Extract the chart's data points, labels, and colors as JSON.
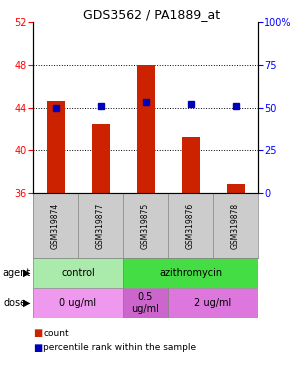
{
  "title": "GDS3562 / PA1889_at",
  "samples": [
    "GSM319874",
    "GSM319877",
    "GSM319875",
    "GSM319876",
    "GSM319878"
  ],
  "count_values": [
    44.6,
    42.5,
    48.0,
    41.2,
    36.8
  ],
  "percentile_values": [
    50,
    51,
    53,
    52,
    51
  ],
  "ylim_left": [
    36,
    52
  ],
  "ylim_right": [
    0,
    100
  ],
  "yticks_left": [
    36,
    40,
    44,
    48,
    52
  ],
  "yticks_right": [
    0,
    25,
    50,
    75,
    100
  ],
  "ytick_right_labels": [
    "0",
    "25",
    "50",
    "75",
    "100%"
  ],
  "bar_color": "#cc2200",
  "dot_color": "#0000bb",
  "agent_groups": [
    {
      "text": "control",
      "start": 0,
      "end": 1,
      "color": "#aaeaaa"
    },
    {
      "text": "azithromycin",
      "start": 2,
      "end": 4,
      "color": "#44dd44"
    }
  ],
  "dose_groups": [
    {
      "text": "0 ug/ml",
      "start": 0,
      "end": 1,
      "color": "#ee99ee"
    },
    {
      "text": "0.5\nug/ml",
      "start": 2,
      "end": 2,
      "color": "#cc66cc"
    },
    {
      "text": "2 ug/ml",
      "start": 3,
      "end": 4,
      "color": "#dd77dd"
    }
  ],
  "sample_bg": "#cccccc",
  "grid_ticks": [
    40,
    44,
    48
  ],
  "bar_width": 0.4
}
